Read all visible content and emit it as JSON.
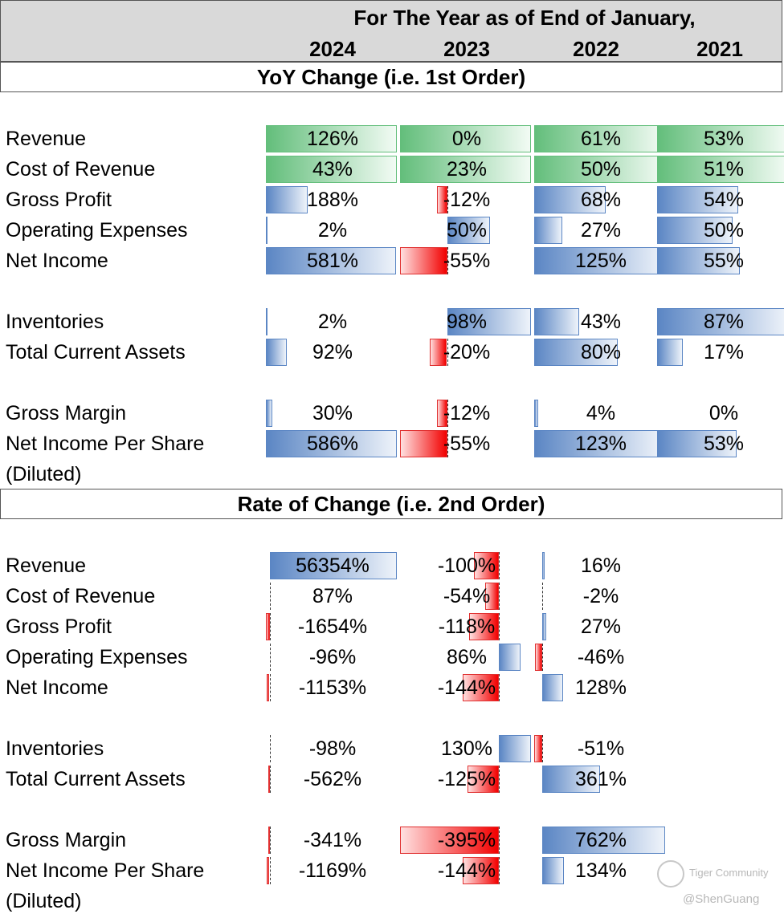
{
  "header": {
    "title": "For The Year as of End of January,",
    "years": [
      "2024",
      "2023",
      "2022",
      "2021"
    ]
  },
  "sections": [
    {
      "title": "YoY Change (i.e. 1st Order)",
      "rows": [
        {
          "label": "Revenue",
          "cells": [
            {
              "text": "126%",
              "value": 126,
              "fill": "green"
            },
            {
              "text": "0%",
              "value": 0,
              "fill": "green"
            },
            {
              "text": "61%",
              "value": 61,
              "fill": "green"
            },
            {
              "text": "53%",
              "value": 53,
              "fill": "green"
            }
          ]
        },
        {
          "label": "Cost of Revenue",
          "cells": [
            {
              "text": "43%",
              "value": 43,
              "fill": "green"
            },
            {
              "text": "23%",
              "value": 23,
              "fill": "green"
            },
            {
              "text": "50%",
              "value": 50,
              "fill": "green"
            },
            {
              "text": "51%",
              "value": 51,
              "fill": "green"
            }
          ]
        },
        {
          "label": "Gross Profit",
          "cells": [
            {
              "text": "188%",
              "value": 188,
              "fill": "bar"
            },
            {
              "text": "-12%",
              "value": -12,
              "fill": "bar"
            },
            {
              "text": "68%",
              "value": 68,
              "fill": "bar"
            },
            {
              "text": "54%",
              "value": 54,
              "fill": "bar"
            }
          ]
        },
        {
          "label": "Operating Expenses",
          "cells": [
            {
              "text": "2%",
              "value": 2,
              "fill": "bar"
            },
            {
              "text": "50%",
              "value": 50,
              "fill": "bar"
            },
            {
              "text": "27%",
              "value": 27,
              "fill": "bar"
            },
            {
              "text": "50%",
              "value": 50,
              "fill": "bar"
            }
          ]
        },
        {
          "label": "Net Income",
          "cells": [
            {
              "text": "581%",
              "value": 581,
              "fill": "bar"
            },
            {
              "text": "-55%",
              "value": -55,
              "fill": "bar"
            },
            {
              "text": "125%",
              "value": 125,
              "fill": "bar"
            },
            {
              "text": "55%",
              "value": 55,
              "fill": "bar"
            }
          ]
        },
        {
          "gap": true
        },
        {
          "label": "Inventories",
          "cells": [
            {
              "text": "2%",
              "value": 2,
              "fill": "bar"
            },
            {
              "text": "98%",
              "value": 98,
              "fill": "bar"
            },
            {
              "text": "43%",
              "value": 43,
              "fill": "bar"
            },
            {
              "text": "87%",
              "value": 87,
              "fill": "bar"
            }
          ]
        },
        {
          "label": "Total Current Assets",
          "cells": [
            {
              "text": "92%",
              "value": 92,
              "fill": "bar"
            },
            {
              "text": "-20%",
              "value": -20,
              "fill": "bar"
            },
            {
              "text": "80%",
              "value": 80,
              "fill": "bar"
            },
            {
              "text": "17%",
              "value": 17,
              "fill": "bar"
            }
          ]
        },
        {
          "gap": true
        },
        {
          "label": "Gross Margin",
          "cells": [
            {
              "text": "30%",
              "value": 30,
              "fill": "bar"
            },
            {
              "text": "-12%",
              "value": -12,
              "fill": "bar"
            },
            {
              "text": "4%",
              "value": 4,
              "fill": "bar"
            },
            {
              "text": "0%",
              "value": 0,
              "fill": "bar"
            }
          ]
        },
        {
          "label": "Net Income Per Share",
          "cells": [
            {
              "text": "586%",
              "value": 586,
              "fill": "bar"
            },
            {
              "text": "-55%",
              "value": -55,
              "fill": "bar"
            },
            {
              "text": "123%",
              "value": 123,
              "fill": "bar"
            },
            {
              "text": "53%",
              "value": 53,
              "fill": "bar"
            }
          ]
        },
        {
          "label": "(Diluted)",
          "cells": []
        }
      ]
    },
    {
      "title": "Rate of Change (i.e. 2nd Order)",
      "rows": [
        {
          "label": "Revenue",
          "cells": [
            {
              "text": "56354%",
              "value": 56354,
              "fill": "bar"
            },
            {
              "text": "-100%",
              "value": -100,
              "fill": "bar"
            },
            {
              "text": "16%",
              "value": 16,
              "fill": "bar"
            }
          ]
        },
        {
          "label": "Cost of Revenue",
          "cells": [
            {
              "text": "87%",
              "value": 87,
              "fill": "bar"
            },
            {
              "text": "-54%",
              "value": -54,
              "fill": "bar"
            },
            {
              "text": "-2%",
              "value": -2,
              "fill": "bar"
            }
          ]
        },
        {
          "label": "Gross Profit",
          "cells": [
            {
              "text": "-1654%",
              "value": -1654,
              "fill": "bar"
            },
            {
              "text": "-118%",
              "value": -118,
              "fill": "bar"
            },
            {
              "text": "27%",
              "value": 27,
              "fill": "bar"
            }
          ]
        },
        {
          "label": "Operating Expenses",
          "cells": [
            {
              "text": "-96%",
              "value": -96,
              "fill": "bar"
            },
            {
              "text": "86%",
              "value": 86,
              "fill": "bar"
            },
            {
              "text": "-46%",
              "value": -46,
              "fill": "bar"
            }
          ]
        },
        {
          "label": "Net Income",
          "cells": [
            {
              "text": "-1153%",
              "value": -1153,
              "fill": "bar"
            },
            {
              "text": "-144%",
              "value": -144,
              "fill": "bar"
            },
            {
              "text": "128%",
              "value": 128,
              "fill": "bar"
            }
          ]
        },
        {
          "gap": true
        },
        {
          "label": "Inventories",
          "cells": [
            {
              "text": "-98%",
              "value": -98,
              "fill": "bar"
            },
            {
              "text": "130%",
              "value": 130,
              "fill": "bar"
            },
            {
              "text": "-51%",
              "value": -51,
              "fill": "bar"
            }
          ]
        },
        {
          "label": "Total Current Assets",
          "cells": [
            {
              "text": "-562%",
              "value": -562,
              "fill": "bar"
            },
            {
              "text": "-125%",
              "value": -125,
              "fill": "bar"
            },
            {
              "text": "361%",
              "value": 361,
              "fill": "bar"
            }
          ]
        },
        {
          "gap": true
        },
        {
          "label": "Gross Margin",
          "cells": [
            {
              "text": "-341%",
              "value": -341,
              "fill": "bar"
            },
            {
              "text": "-395%",
              "value": -395,
              "fill": "bar"
            },
            {
              "text": "762%",
              "value": 762,
              "fill": "bar"
            }
          ]
        },
        {
          "label": "Net Income Per Share",
          "cells": [
            {
              "text": "-1169%",
              "value": -1169,
              "fill": "bar"
            },
            {
              "text": "-144%",
              "value": -144,
              "fill": "bar"
            },
            {
              "text": "134%",
              "value": 134,
              "fill": "bar"
            }
          ]
        },
        {
          "label": "(Diluted)",
          "cells": []
        }
      ]
    }
  ],
  "colors": {
    "positive_bar": "#5b86c4",
    "negative_bar": "#f20000",
    "growth_fill": "#63be7b",
    "header_bg": "#d9d9d9"
  },
  "watermark": {
    "logo_icon": "tiger-logo-icon",
    "brand": "Tiger Community",
    "handle": "@ShenGuang"
  }
}
